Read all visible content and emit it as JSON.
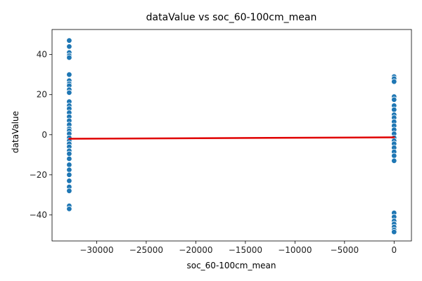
{
  "chart_data": {
    "type": "scatter",
    "title": "dataValue vs soc_60-100cm_mean",
    "xlabel": "soc_60-100cm_mean",
    "ylabel": "dataValue",
    "xlim": [
      -34500,
      1750
    ],
    "ylim": [
      -53,
      52.5
    ],
    "x_ticks": [
      -30000,
      -25000,
      -20000,
      -15000,
      -10000,
      -5000,
      0
    ],
    "x_tick_labels": [
      "−30000",
      "−25000",
      "−20000",
      "−15000",
      "−10000",
      "−5000",
      "0"
    ],
    "y_ticks": [
      -40,
      -20,
      0,
      20,
      40
    ],
    "y_tick_labels": [
      "−40",
      "−20",
      "0",
      "20",
      "40"
    ],
    "grid": false,
    "series": [
      {
        "kind": "scatter",
        "color": "#1f77b4",
        "points": [
          [
            -32768,
            47
          ],
          [
            -32768,
            44
          ],
          [
            -32768,
            41
          ],
          [
            -32768,
            39.5
          ],
          [
            -32768,
            38.5
          ],
          [
            -32768,
            30
          ],
          [
            -32768,
            27
          ],
          [
            -32768,
            25.5
          ],
          [
            -32768,
            24.5
          ],
          [
            -32768,
            22.5
          ],
          [
            -32768,
            21
          ],
          [
            -32768,
            16.5
          ],
          [
            -32768,
            14.5
          ],
          [
            -32768,
            13
          ],
          [
            -32768,
            11
          ],
          [
            -32768,
            9
          ],
          [
            -32768,
            7
          ],
          [
            -32768,
            5
          ],
          [
            -32768,
            3
          ],
          [
            -32768,
            2
          ],
          [
            -32768,
            0.5
          ],
          [
            -32768,
            -1.5
          ],
          [
            -32768,
            -3
          ],
          [
            -32768,
            -4.5
          ],
          [
            -32768,
            -6
          ],
          [
            -32768,
            -8
          ],
          [
            -32768,
            -9.5
          ],
          [
            -32768,
            -12
          ],
          [
            -32768,
            -15
          ],
          [
            -32768,
            -17.5
          ],
          [
            -32768,
            -20
          ],
          [
            -32768,
            -23
          ],
          [
            -32768,
            -26
          ],
          [
            -32768,
            -28
          ],
          [
            -32768,
            -35.5
          ],
          [
            -32768,
            -37
          ],
          [
            0,
            29
          ],
          [
            0,
            28
          ],
          [
            0,
            26.5
          ],
          [
            0,
            19
          ],
          [
            0,
            17.5
          ],
          [
            0,
            14.5
          ],
          [
            0,
            12.5
          ],
          [
            0,
            10
          ],
          [
            0,
            8.5
          ],
          [
            0,
            6.5
          ],
          [
            0,
            4.5
          ],
          [
            0,
            2.5
          ],
          [
            0,
            0.5
          ],
          [
            0,
            -1.5
          ],
          [
            0,
            -3
          ],
          [
            0,
            -4.5
          ],
          [
            0,
            -6.5
          ],
          [
            0,
            -8.5
          ],
          [
            0,
            -10.5
          ],
          [
            0,
            -13
          ],
          [
            0,
            -39
          ],
          [
            0,
            -41
          ],
          [
            0,
            -43
          ],
          [
            0,
            -44.5
          ],
          [
            0,
            -46
          ],
          [
            0,
            -47.5
          ],
          [
            0,
            -48.5
          ]
        ]
      },
      {
        "kind": "regression",
        "color": "#e00000",
        "x": [
          -32768,
          0
        ],
        "y": [
          -2.0,
          -1.3
        ]
      }
    ]
  }
}
